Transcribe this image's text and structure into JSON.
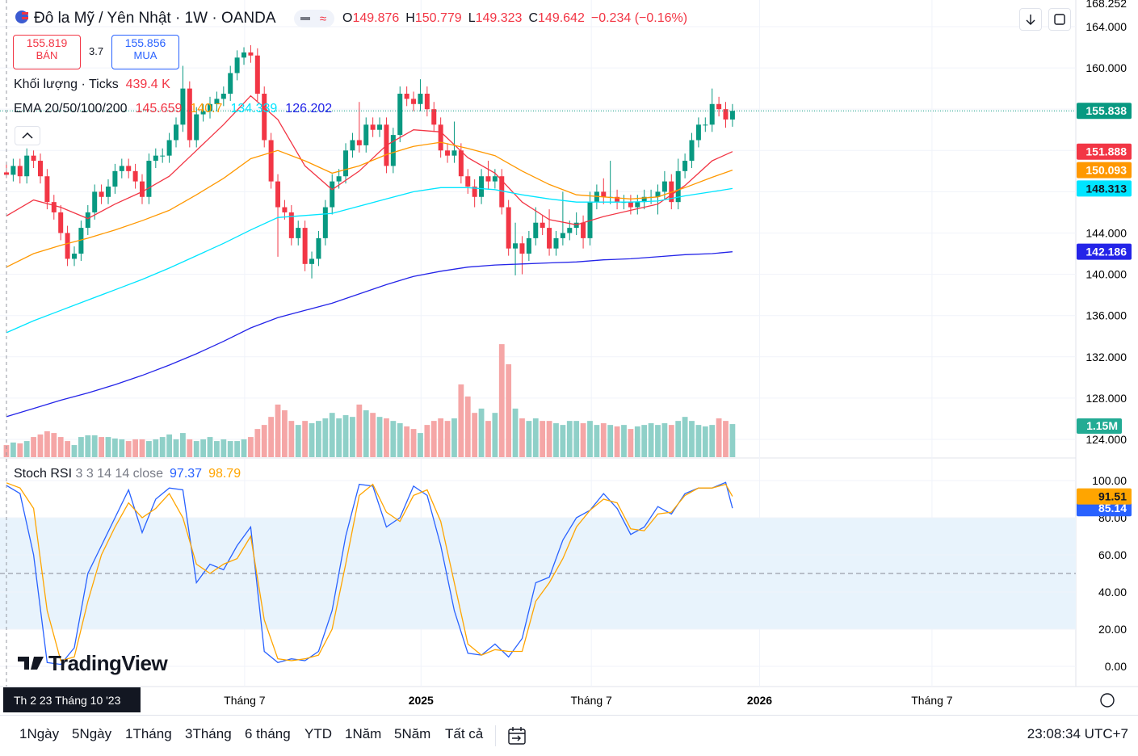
{
  "header": {
    "title": "Đô la Mỹ / Yên Nhật · 1W · OANDA",
    "ohlc_labels": [
      "O",
      "H",
      "L",
      "C"
    ],
    "change": "−0.234 (−0.16%)",
    "sell_price": "155.819",
    "sell_label": "BÁN",
    "spread": "3.7",
    "buy_price": "155.856",
    "buy_label": "MUA",
    "volume_title": "Khối lượng · Ticks",
    "volume_value": "439.4 K",
    "ema_title": "EMA 20/50/100/200",
    "stoch_title": "Stoch RSI",
    "stoch_params": "3 3 14 14 close",
    "cut_label": "168.252"
  },
  "chart_data": {
    "type": "candlestick",
    "xlim": [
      -0.95,
      157.6
    ],
    "ylim": [
      122.28,
      166.58
    ],
    "xticks": [
      {
        "value": 35.1,
        "label": "Tháng 7"
      },
      {
        "value": 61.1,
        "label": "2025"
      },
      {
        "value": 86.2,
        "label": "Tháng 7"
      },
      {
        "value": 111,
        "label": "2026"
      },
      {
        "value": 136.4,
        "label": "Tháng 7"
      }
    ],
    "yticks": [
      {
        "value": 124,
        "label": "124.000"
      },
      {
        "value": 128,
        "label": "128.000"
      },
      {
        "value": 132,
        "label": "132.000"
      },
      {
        "value": 136,
        "label": "136.000"
      },
      {
        "value": 140,
        "label": "140.000"
      },
      {
        "value": 144,
        "label": "144.000"
      },
      {
        "value": 148,
        "label": "148.000"
      },
      {
        "value": 152,
        "label": "152.000"
      },
      {
        "value": 156,
        "label": "156.000"
      },
      {
        "value": 160,
        "label": "160.000"
      },
      {
        "value": 164,
        "label": "164.000"
      }
    ],
    "up_color": "#089981",
    "down_color": "#f23645",
    "grid": true,
    "crosshair": {
      "index": 0,
      "label": "Th 2 23 Tháng 10 '23"
    },
    "candles": [
      [
        149.876,
        150.779,
        149.323,
        149.642
      ],
      [
        149.642,
        151.2,
        149,
        150.5
      ],
      [
        150.5,
        151.2,
        148.8,
        149.5
      ],
      [
        149.5,
        152.2,
        148.8,
        151.5
      ],
      [
        151.5,
        152,
        150.3,
        151
      ],
      [
        151,
        151.7,
        148.8,
        149.5
      ],
      [
        149.5,
        150.2,
        146.3,
        147
      ],
      [
        147,
        147.7,
        145.3,
        146
      ],
      [
        146,
        146.7,
        143.3,
        144
      ],
      [
        144,
        144.7,
        140.8,
        141.5
      ],
      [
        141.5,
        142.7,
        140.8,
        142
      ],
      [
        142,
        145.2,
        141.3,
        144.5
      ],
      [
        144.5,
        146.7,
        143.8,
        146
      ],
      [
        146,
        148.7,
        145.3,
        148
      ],
      [
        148,
        148.7,
        146.8,
        147.5
      ],
      [
        147.5,
        149.2,
        146.8,
        148.5
      ],
      [
        148.5,
        150.7,
        147.8,
        150
      ],
      [
        150,
        151.2,
        149.3,
        150.5
      ],
      [
        150.5,
        151.2,
        149.3,
        150
      ],
      [
        150,
        150.7,
        148.3,
        149
      ],
      [
        149,
        149.7,
        146.8,
        147.5
      ],
      [
        147.5,
        151.7,
        146.8,
        151
      ],
      [
        151,
        152.2,
        150.3,
        151.5
      ],
      [
        151.5,
        152.2,
        150.8,
        151.5
      ],
      [
        151.5,
        153.7,
        150.8,
        153
      ],
      [
        153,
        155.2,
        152.3,
        154.5
      ],
      [
        154.5,
        160.2,
        153.8,
        158
      ],
      [
        158,
        158.7,
        152.3,
        153
      ],
      [
        153,
        156.2,
        152.3,
        155.5
      ],
      [
        155.5,
        156.5,
        154.8,
        155.8
      ],
      [
        155.8,
        157.2,
        155.1,
        156.5
      ],
      [
        156.5,
        157.7,
        155.8,
        157
      ],
      [
        157,
        158.2,
        156.3,
        157.5
      ],
      [
        157.5,
        160.2,
        156.8,
        159.5
      ],
      [
        159.5,
        161.7,
        158.8,
        161
      ],
      [
        161,
        162,
        160.3,
        161.5
      ],
      [
        161.5,
        162.2,
        160.5,
        161.2
      ],
      [
        161.2,
        161.9,
        156.8,
        157.5
      ],
      [
        157.5,
        158.2,
        152.3,
        153
      ],
      [
        153,
        153.7,
        148.3,
        149
      ],
      [
        149,
        149.7,
        141.7,
        146.5
      ],
      [
        146.5,
        147.2,
        145.3,
        146
      ],
      [
        146,
        146.7,
        142.8,
        143.5
      ],
      [
        143.5,
        145.2,
        142.8,
        144.5
      ],
      [
        144.5,
        145.2,
        140.3,
        141
      ],
      [
        141,
        142.2,
        139.6,
        141.5
      ],
      [
        141.5,
        144.2,
        140.8,
        143.5
      ],
      [
        143.5,
        147.2,
        142.8,
        146.5
      ],
      [
        146.5,
        149.7,
        145.8,
        149
      ],
      [
        149,
        150.2,
        148.3,
        149.5
      ],
      [
        149.5,
        152.7,
        148.8,
        152
      ],
      [
        152,
        153.7,
        151.3,
        153
      ],
      [
        153,
        156.7,
        151.8,
        152.5
      ],
      [
        152.5,
        155.2,
        151.8,
        154.5
      ],
      [
        154.5,
        155.2,
        153.3,
        154
      ],
      [
        154,
        155.2,
        153.3,
        154.5
      ],
      [
        154.5,
        155.2,
        149.8,
        150.5
      ],
      [
        150.5,
        154.2,
        149.8,
        153.5
      ],
      [
        153.5,
        158.2,
        152.8,
        157.5
      ],
      [
        157.5,
        158.2,
        156.3,
        157
      ],
      [
        157,
        157.7,
        155.8,
        156.5
      ],
      [
        156.5,
        158.9,
        155.8,
        157.5
      ],
      [
        157.5,
        158.2,
        155.3,
        156
      ],
      [
        156,
        156.7,
        153.8,
        154.5
      ],
      [
        154.5,
        155.2,
        151.3,
        152
      ],
      [
        152,
        152.7,
        150.8,
        151.5
      ],
      [
        151.5,
        154.8,
        150.8,
        152
      ],
      [
        152,
        152.7,
        148.8,
        149.5
      ],
      [
        149.5,
        150.2,
        147.8,
        148.5
      ],
      [
        148.5,
        149.2,
        146.5,
        147.5
      ],
      [
        147.5,
        150.2,
        146.8,
        149.5
      ],
      [
        149.5,
        151,
        148.3,
        149
      ],
      [
        149,
        150.2,
        148.3,
        149.5
      ],
      [
        149.5,
        150.2,
        145.8,
        146.5
      ],
      [
        146.5,
        147.2,
        141.8,
        142.5
      ],
      [
        142.5,
        145,
        139.9,
        143
      ],
      [
        143,
        143.7,
        140,
        142
      ],
      [
        142,
        144.2,
        141.3,
        143.5
      ],
      [
        143.5,
        146.5,
        142.8,
        145
      ],
      [
        145,
        145.7,
        143.8,
        144.5
      ],
      [
        144.5,
        146.3,
        141.8,
        142.5
      ],
      [
        142.5,
        144.2,
        141.8,
        143.5
      ],
      [
        143.5,
        148,
        142.8,
        144
      ],
      [
        144,
        145.2,
        143.3,
        144.5
      ],
      [
        144.5,
        146,
        143.8,
        145
      ],
      [
        145,
        145.7,
        142.5,
        143.5
      ],
      [
        143.5,
        148,
        142.8,
        147
      ],
      [
        147,
        148.7,
        146.3,
        148
      ],
      [
        148,
        149.3,
        146.8,
        147.5
      ],
      [
        147.5,
        151,
        146.8,
        147.5
      ],
      [
        147.5,
        148.2,
        146.3,
        147
      ],
      [
        147,
        147.7,
        146.3,
        147
      ],
      [
        147,
        147.7,
        145.8,
        146.5
      ],
      [
        146.5,
        147.7,
        145.8,
        147
      ],
      [
        147,
        148.2,
        146.3,
        147.5
      ],
      [
        147.5,
        148.2,
        146.8,
        147.5
      ],
      [
        147.5,
        148.7,
        145.8,
        148
      ],
      [
        148,
        150,
        147.3,
        149
      ],
      [
        149,
        149.7,
        146.3,
        147
      ],
      [
        147,
        151.2,
        146.3,
        150
      ],
      [
        150,
        151.7,
        149.3,
        151
      ],
      [
        151,
        153.7,
        150.3,
        153
      ],
      [
        153,
        155.2,
        152.3,
        154.5
      ],
      [
        154.5,
        155.2,
        153.8,
        154.5
      ],
      [
        154.5,
        158,
        153.8,
        156.5
      ],
      [
        156.5,
        157.2,
        155.3,
        156
      ],
      [
        156,
        156.7,
        154.2,
        155
      ],
      [
        155,
        156.5,
        154.3,
        155.838
      ]
    ],
    "volume": {
      "color_up": "#8fd0c8",
      "color_down": "#f5a6a6",
      "last_label": "1.15M",
      "values": [
        0.42,
        0.51,
        0.48,
        0.56,
        0.7,
        0.79,
        0.9,
        0.84,
        0.7,
        0.56,
        0.42,
        0.7,
        0.76,
        0.76,
        0.7,
        0.7,
        0.65,
        0.62,
        0.56,
        0.62,
        0.62,
        0.56,
        0.62,
        0.7,
        0.79,
        0.62,
        0.84,
        0.62,
        0.56,
        0.62,
        0.7,
        0.56,
        0.62,
        0.56,
        0.56,
        0.62,
        0.7,
        0.98,
        1.12,
        1.4,
        1.83,
        1.63,
        1.26,
        1.12,
        1.26,
        1.18,
        1.26,
        1.35,
        1.54,
        1.35,
        1.46,
        1.4,
        1.83,
        1.63,
        1.54,
        1.4,
        1.35,
        1.26,
        1.18,
        1.07,
        0.98,
        0.84,
        1.12,
        1.26,
        1.35,
        1.26,
        1.35,
        2.53,
        2.11,
        1.54,
        1.69,
        1.26,
        1.54,
        3.93,
        3.23,
        1.69,
        1.35,
        1.26,
        1.35,
        1.26,
        1.26,
        1.18,
        1.12,
        1.26,
        1.26,
        1.18,
        1.26,
        1.12,
        1.18,
        1.12,
        1.07,
        1.12,
        0.98,
        1.07,
        1.12,
        1.18,
        1.12,
        1.18,
        1.12,
        1.26,
        1.4,
        1.26,
        1.12,
        1.07,
        1.12,
        1.35,
        1.26,
        1.15
      ]
    },
    "ema_x": [
      0,
      4,
      8,
      12,
      16,
      20,
      24,
      28,
      32,
      36,
      40,
      44,
      48,
      52,
      56,
      60,
      64,
      68,
      72,
      76,
      80,
      84,
      88,
      92,
      96,
      100,
      104,
      107
    ],
    "series": [
      {
        "color": "#f23645",
        "values": [
          145.659,
          147.2,
          146.5,
          145.4,
          146.8,
          148,
          149.5,
          152,
          154.5,
          157.3,
          155,
          150.5,
          148.2,
          150,
          152.5,
          154,
          153.8,
          151.3,
          149.8,
          147,
          145.3,
          144.8,
          145.6,
          146.2,
          146.8,
          148.6,
          151,
          151.888
        ]
      },
      {
        "color": "#ff9800",
        "values": [
          140.7,
          142,
          142.8,
          143.5,
          144.3,
          145.2,
          146.2,
          147.7,
          149.3,
          151.2,
          152,
          151,
          149.8,
          150.5,
          151.6,
          152.4,
          152.8,
          152.2,
          151.5,
          150,
          148.7,
          147.7,
          147.5,
          147.3,
          147.5,
          148.4,
          149.4,
          150.093
        ]
      },
      {
        "color": "#00e5ff",
        "values": [
          134.339,
          135.5,
          136.5,
          137.5,
          138.5,
          139.5,
          140.6,
          141.8,
          143,
          144.3,
          145.5,
          145.7,
          145.9,
          146.6,
          147.3,
          148,
          148.4,
          148.4,
          148.2,
          147.7,
          147.3,
          147,
          147,
          147,
          147.1,
          147.6,
          148,
          148.313
        ]
      },
      {
        "color": "#2424e8",
        "values": [
          126.202,
          127,
          127.8,
          128.5,
          129.3,
          130.2,
          131.2,
          132.3,
          133.5,
          134.8,
          135.8,
          136.5,
          137.2,
          138.1,
          139,
          139.8,
          140.3,
          140.7,
          140.9,
          141,
          141.1,
          141.2,
          141.4,
          141.5,
          141.7,
          141.9,
          142,
          142.186
        ]
      }
    ],
    "stoch": {
      "ylim": [
        -10.9,
        112.2
      ],
      "yticks": [
        {
          "value": 0,
          "label": "0.00"
        },
        {
          "value": 20,
          "label": "20.00"
        },
        {
          "value": 40,
          "label": "40.00"
        },
        {
          "value": 60,
          "label": "60.00"
        },
        {
          "value": 80,
          "label": "80.00"
        },
        {
          "value": 100,
          "label": "100.00"
        }
      ],
      "band": [
        20,
        80
      ],
      "midline": 50,
      "x": [
        0,
        2,
        4,
        6,
        8,
        10,
        12,
        14,
        16,
        18,
        20,
        22,
        24,
        26,
        28,
        30,
        32,
        34,
        36,
        38,
        40,
        42,
        44,
        46,
        48,
        50,
        52,
        54,
        56,
        58,
        60,
        62,
        64,
        66,
        68,
        70,
        72,
        74,
        76,
        78,
        80,
        82,
        84,
        86,
        88,
        90,
        92,
        94,
        96,
        98,
        100,
        102,
        104,
        106,
        107
      ],
      "series": [
        {
          "color": "#2962ff",
          "values": [
            97.37,
            93,
            60,
            2,
            1,
            10,
            50,
            65,
            80,
            95,
            72,
            90,
            96,
            95,
            45,
            55,
            52,
            65,
            75,
            8,
            2,
            4,
            3,
            8,
            30,
            70,
            98,
            97,
            75,
            80,
            97,
            92,
            65,
            30,
            7,
            6,
            12,
            5,
            15,
            45,
            48,
            68,
            80,
            84,
            93,
            85,
            71,
            75,
            86,
            82,
            93,
            96,
            96,
            99,
            85.14
          ]
        },
        {
          "color": "#ffa500",
          "values": [
            98.79,
            96,
            85,
            30,
            3,
            5,
            35,
            60,
            75,
            88,
            80,
            85,
            93,
            80,
            55,
            50,
            55,
            58,
            70,
            25,
            4,
            3,
            4,
            6,
            20,
            55,
            92,
            98,
            83,
            78,
            92,
            95,
            78,
            45,
            12,
            6,
            9,
            8,
            8,
            35,
            45,
            58,
            75,
            84,
            90,
            88,
            74,
            73,
            82,
            83,
            92,
            96,
            96,
            98,
            91.51
          ]
        }
      ]
    }
  },
  "logo": "TradingView",
  "toolbar": {
    "ranges": [
      "1Ngày",
      "5Ngày",
      "1Tháng",
      "3Tháng",
      "6 tháng",
      "YTD",
      "1Năm",
      "5Năm",
      "Tất cả"
    ],
    "clock": "23:08:34 UTC+7"
  }
}
